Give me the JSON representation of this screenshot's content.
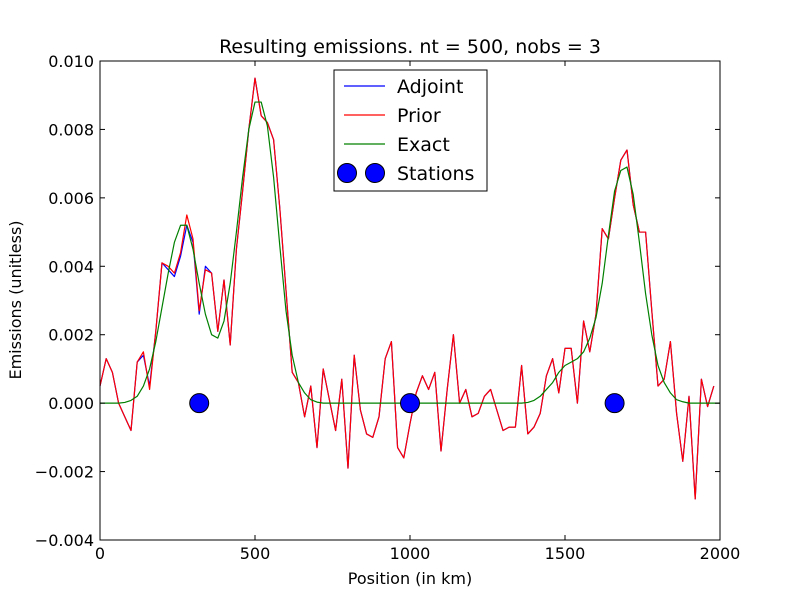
{
  "chart_data": {
    "type": "line",
    "title": "Resulting emissions. nt = 500, nobs = 3",
    "xlabel": "Position (in km)",
    "ylabel": "Emissions (unitless)",
    "xlim": [
      0,
      2000
    ],
    "ylim": [
      -0.004,
      0.01
    ],
    "grid": false,
    "legend_position": "top-center",
    "x_ticks": [
      0,
      500,
      1000,
      1500,
      2000
    ],
    "x_tick_labels": [
      "0",
      "500",
      "1000",
      "1500",
      "2000"
    ],
    "y_ticks": [
      -0.004,
      -0.002,
      0.0,
      0.002,
      0.004,
      0.006,
      0.008,
      0.01
    ],
    "y_tick_labels": [
      "−0.004",
      "−0.002",
      "0.000",
      "0.002",
      "0.004",
      "0.006",
      "0.008",
      "0.010"
    ],
    "series": [
      {
        "name": "Adjoint",
        "color": "#0000ff",
        "kind": "line",
        "x": [
          0,
          20,
          40,
          60,
          80,
          100,
          120,
          140,
          160,
          180,
          200,
          220,
          240,
          260,
          280,
          300,
          320,
          340,
          360,
          380,
          400,
          420,
          440,
          460,
          480,
          500,
          520,
          540,
          560,
          580,
          600,
          620,
          640,
          660,
          680,
          700,
          720,
          740,
          760,
          780,
          800,
          820,
          840,
          860,
          880,
          900,
          920,
          940,
          960,
          980,
          1000,
          1020,
          1040,
          1060,
          1080,
          1100,
          1120,
          1140,
          1160,
          1180,
          1200,
          1220,
          1240,
          1260,
          1280,
          1300,
          1320,
          1340,
          1360,
          1380,
          1400,
          1420,
          1440,
          1460,
          1480,
          1500,
          1520,
          1540,
          1560,
          1580,
          1600,
          1620,
          1640,
          1660,
          1680,
          1700,
          1720,
          1740,
          1760,
          1780,
          1800,
          1820,
          1840,
          1860,
          1880,
          1900,
          1920,
          1940,
          1960,
          1980,
          2000
        ],
        "values": [
          0.0005,
          0.0013,
          0.0009,
          0.0,
          -0.0004,
          -0.0008,
          0.0012,
          0.0014,
          0.0005,
          0.0021,
          0.0041,
          0.0039,
          0.0037,
          0.0043,
          0.0052,
          0.0047,
          0.0026,
          0.004,
          0.0038,
          0.0021,
          0.0036,
          0.0017,
          0.0045,
          0.0062,
          0.008,
          0.0095,
          0.0084,
          0.0082,
          0.0077,
          0.0057,
          0.0033,
          0.0009,
          0.0006,
          -0.0004,
          0.0005,
          -0.0013,
          0.001,
          0.0001,
          -0.0008,
          0.0007,
          -0.0019,
          0.0014,
          -0.0002,
          -0.0009,
          -0.001,
          -0.0004,
          0.0013,
          0.0018,
          -0.0013,
          -0.0016,
          -0.0006,
          0.0003,
          0.0008,
          0.0004,
          0.0009,
          -0.0014,
          0.0004,
          0.002,
          0.0,
          0.0004,
          -0.0004,
          -0.0003,
          0.0002,
          0.0004,
          -0.0002,
          -0.0008,
          -0.0007,
          -0.0007,
          0.0011,
          -0.0009,
          -0.0007,
          -0.0003,
          0.0008,
          0.0013,
          0.0003,
          0.0016,
          0.0016,
          0.0,
          0.0024,
          0.0015,
          0.0026,
          0.0051,
          0.0048,
          0.006,
          0.0071,
          0.0074,
          0.0058,
          0.005,
          0.005,
          0.0027,
          0.0005,
          0.0007,
          0.0018,
          -0.0003,
          -0.0017,
          0.0002,
          -0.0028,
          0.0007,
          -0.0001,
          0.0005,
          null
        ]
      },
      {
        "name": "Prior",
        "color": "#ff0000",
        "kind": "line",
        "x": [
          0,
          20,
          40,
          60,
          80,
          100,
          120,
          140,
          160,
          180,
          200,
          220,
          240,
          260,
          280,
          300,
          320,
          340,
          360,
          380,
          400,
          420,
          440,
          460,
          480,
          500,
          520,
          540,
          560,
          580,
          600,
          620,
          640,
          660,
          680,
          700,
          720,
          740,
          760,
          780,
          800,
          820,
          840,
          860,
          880,
          900,
          920,
          940,
          960,
          980,
          1000,
          1020,
          1040,
          1060,
          1080,
          1100,
          1120,
          1140,
          1160,
          1180,
          1200,
          1220,
          1240,
          1260,
          1280,
          1300,
          1320,
          1340,
          1360,
          1380,
          1400,
          1420,
          1440,
          1460,
          1480,
          1500,
          1520,
          1540,
          1560,
          1580,
          1600,
          1620,
          1640,
          1660,
          1680,
          1700,
          1720,
          1740,
          1760,
          1780,
          1800,
          1820,
          1840,
          1860,
          1880,
          1900,
          1920,
          1940,
          1960,
          1980,
          2000
        ],
        "values": [
          0.0005,
          0.0013,
          0.0009,
          0.0,
          -0.0004,
          -0.0008,
          0.0012,
          0.0015,
          0.0004,
          0.0021,
          0.0041,
          0.004,
          0.0038,
          0.0044,
          0.0055,
          0.0048,
          0.0027,
          0.0039,
          0.0038,
          0.0021,
          0.0036,
          0.0017,
          0.0045,
          0.0062,
          0.008,
          0.0095,
          0.0084,
          0.0082,
          0.0077,
          0.0057,
          0.0033,
          0.0009,
          0.0006,
          -0.0004,
          0.0005,
          -0.0013,
          0.001,
          0.0001,
          -0.0008,
          0.0007,
          -0.0019,
          0.0014,
          -0.0002,
          -0.0009,
          -0.001,
          -0.0004,
          0.0013,
          0.0018,
          -0.0013,
          -0.0016,
          -0.0006,
          0.0003,
          0.0008,
          0.0004,
          0.0009,
          -0.0014,
          0.0004,
          0.002,
          0.0,
          0.0004,
          -0.0004,
          -0.0003,
          0.0002,
          0.0004,
          -0.0002,
          -0.0008,
          -0.0007,
          -0.0007,
          0.0011,
          -0.0009,
          -0.0007,
          -0.0003,
          0.0008,
          0.0013,
          0.0003,
          0.0016,
          0.0016,
          0.0,
          0.0024,
          0.0015,
          0.0026,
          0.0051,
          0.0048,
          0.006,
          0.0071,
          0.0074,
          0.0058,
          0.005,
          0.005,
          0.0027,
          0.0005,
          0.0007,
          0.0018,
          -0.0003,
          -0.0017,
          0.0002,
          -0.0028,
          0.0007,
          -0.0001,
          0.0005,
          null
        ]
      },
      {
        "name": "Exact",
        "color": "#008000",
        "kind": "line",
        "x": [
          0,
          20,
          40,
          60,
          80,
          100,
          120,
          140,
          160,
          180,
          200,
          220,
          240,
          260,
          280,
          300,
          320,
          340,
          360,
          380,
          400,
          420,
          440,
          460,
          480,
          500,
          520,
          540,
          560,
          580,
          600,
          620,
          640,
          660,
          680,
          700,
          720,
          740,
          760,
          800,
          900,
          1000,
          1100,
          1200,
          1300,
          1360,
          1380,
          1400,
          1420,
          1440,
          1460,
          1480,
          1500,
          1520,
          1540,
          1560,
          1580,
          1600,
          1620,
          1640,
          1660,
          1680,
          1700,
          1720,
          1740,
          1760,
          1780,
          1800,
          1820,
          1840,
          1860,
          1880,
          1900,
          1920,
          1940,
          1960,
          1980,
          2000
        ],
        "values": [
          0.0,
          0.0,
          0.0,
          0.0,
          2e-05,
          8e-05,
          0.0002,
          0.0005,
          0.001,
          0.0018,
          0.0028,
          0.0038,
          0.0047,
          0.0052,
          0.0052,
          0.0045,
          0.0035,
          0.0026,
          0.002,
          0.0019,
          0.0024,
          0.0035,
          0.005,
          0.0066,
          0.008,
          0.0088,
          0.0088,
          0.0081,
          0.0066,
          0.0046,
          0.0027,
          0.0014,
          0.0006,
          0.0003,
          0.0001,
          3e-05,
          0.0,
          0.0,
          0.0,
          0.0,
          0.0,
          0.0,
          0.0,
          0.0,
          0.0,
          0.0,
          2e-05,
          8e-05,
          0.0002,
          0.0004,
          0.0006,
          0.0009,
          0.0011,
          0.0012,
          0.0013,
          0.0015,
          0.0019,
          0.0025,
          0.0035,
          0.0049,
          0.0062,
          0.0068,
          0.0069,
          0.0061,
          0.0047,
          0.0032,
          0.002,
          0.0011,
          0.0006,
          0.0003,
          0.0001,
          4e-05,
          0.0,
          0.0,
          0.0,
          0.0,
          0.0,
          0.0
        ]
      },
      {
        "name": "Stations",
        "color": "#0000ff",
        "kind": "marker",
        "x": [
          320,
          1000,
          1660
        ],
        "values": [
          0.0,
          0.0,
          0.0
        ]
      }
    ]
  }
}
